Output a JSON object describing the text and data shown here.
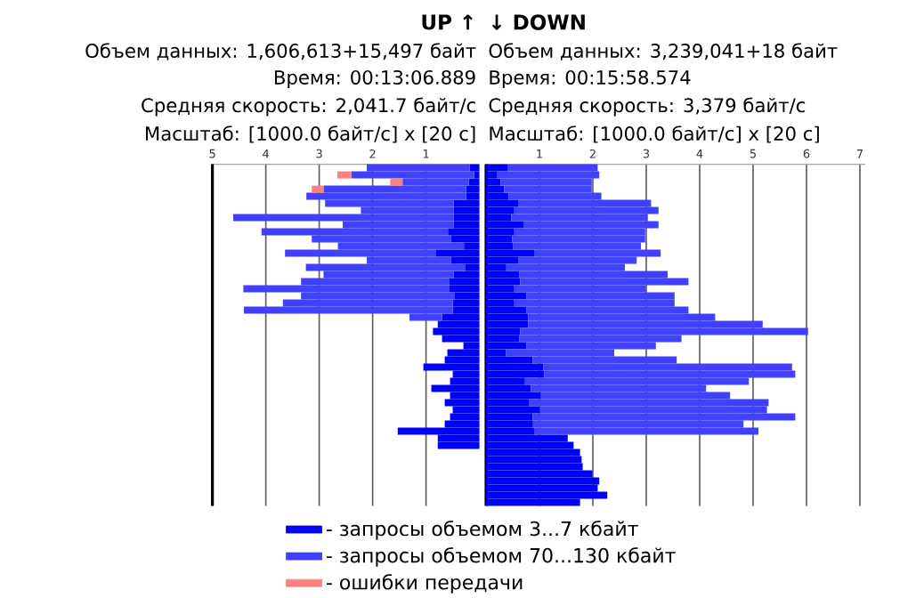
{
  "chart_data": [
    {
      "type": "bar",
      "orientation": "horizontal",
      "stacked": true,
      "title": "UP ↑",
      "annotations": [
        "Объем данных: 1,606,613+15,497 байт",
        "Время: 00:13:06.889",
        "Средняя скорость: 2,041.7 байт/с",
        "Масштаб: [1000.0 байт/с] x [20 с]"
      ],
      "categories": [
        null,
        null,
        null,
        null,
        null,
        null,
        null,
        null,
        null,
        null,
        null,
        null,
        null,
        null,
        null,
        null,
        null,
        null,
        null,
        null,
        null,
        null,
        null,
        null,
        null,
        null,
        null,
        null,
        null,
        null,
        null,
        null,
        null,
        null,
        null,
        null,
        null,
        null,
        null,
        null,
        null,
        null,
        null,
        null,
        null,
        null,
        null,
        null
      ],
      "xlim": [
        5,
        0
      ],
      "xticks": [
        5,
        4,
        3,
        2,
        1
      ],
      "grid": "x",
      "legend": "bottom",
      "series": [
        {
          "name": "- запросы объемом 3...7 кбайт",
          "color": "#0000ff",
          "values": [
            0.18,
            0.1,
            0.2,
            0.25,
            0.25,
            0.48,
            0.48,
            0.48,
            0.48,
            0.59,
            0.53,
            0.29,
            0.81,
            0.53,
            0.26,
            0.48,
            0.56,
            0.56,
            0.46,
            0.5,
            0.5,
            0.7,
            0.78,
            0.87,
            0.7,
            0.3,
            0.6,
            0.65,
            1.05,
            0.5,
            0.55,
            0.9,
            0.55,
            0.65,
            0.5,
            0.55,
            0.65,
            1.53,
            0.78,
            0.78,
            null,
            null,
            null,
            null,
            null,
            null,
            null,
            null
          ]
        },
        {
          "name": "- запросы объемом 70...130 кбайт",
          "color": "#4040ff",
          "values": [
            1.93,
            2.3,
            1.24,
            2.67,
            2.99,
            2.41,
            1.74,
            4.13,
            2.08,
            3.49,
            2.61,
            2.36,
            2.83,
            1.58,
            2.99,
            2.44,
            2.78,
            3.86,
            2.88,
            3.18,
            3.91,
            0.61,
            null,
            null,
            null,
            null,
            null,
            null,
            null,
            null,
            null,
            null,
            null,
            null,
            null,
            null,
            null,
            null,
            null,
            null,
            null,
            null,
            null,
            null,
            null,
            null,
            null,
            null
          ]
        },
        {
          "name": "- ошибки передачи",
          "color": "#ff8080",
          "values": [
            null,
            0.26,
            0.23,
            0.22,
            null,
            null,
            null,
            null,
            null,
            null,
            null,
            null,
            null,
            null,
            null,
            null,
            null,
            null,
            null,
            null,
            null,
            null,
            null,
            null,
            null,
            null,
            null,
            null,
            null,
            null,
            null,
            null,
            null,
            null,
            null,
            null,
            null,
            null,
            null,
            null,
            null,
            null,
            null,
            null,
            null,
            null,
            null,
            null
          ]
        }
      ]
    },
    {
      "type": "bar",
      "orientation": "horizontal",
      "stacked": true,
      "title": "↓ DOWN",
      "annotations": [
        "Объем данных: 3,239,041+18 байт",
        "Время: 00:15:58.574",
        "Средняя скорость: 3,379 байт/с",
        "Масштаб: [1000.0 байт/с] x [20 с]"
      ],
      "categories": [
        null,
        null,
        null,
        null,
        null,
        null,
        null,
        null,
        null,
        null,
        null,
        null,
        null,
        null,
        null,
        null,
        null,
        null,
        null,
        null,
        null,
        null,
        null,
        null,
        null,
        null,
        null,
        null,
        null,
        null,
        null,
        null,
        null,
        null,
        null,
        null,
        null,
        null,
        null,
        null,
        null,
        null,
        null,
        null,
        null,
        null,
        null,
        null
      ],
      "xlim": [
        0,
        7.1
      ],
      "xticks": [
        1,
        2,
        3,
        4,
        5,
        6,
        7
      ],
      "grid": "x",
      "series": [
        {
          "color": "#0000ff",
          "values": [
            0.4,
            0.2,
            0.27,
            0.34,
            0.42,
            0.6,
            0.53,
            0.47,
            0.7,
            0.53,
            0.49,
            0.51,
            0.9,
            0.6,
            0.38,
            0.62,
            0.64,
            0.53,
            0.76,
            0.53,
            0.76,
            0.79,
            0.79,
            0.64,
            0.62,
            0.76,
            0.37,
            0.87,
            1.07,
            1.09,
            0.73,
            0.84,
            1.03,
            0.8,
            1.01,
            0.87,
            0.88,
            0.9,
            1.53,
            1.64,
            1.76,
            1.79,
            1.81,
            1.99,
            2.12,
            2.09,
            2.27,
            1.76
          ]
        },
        {
          "color": "#4040ff",
          "values": [
            1.69,
            1.92,
            1.71,
            1.64,
            1.74,
            2.49,
            2.7,
            2.56,
            2.53,
            2.45,
            2.49,
            2.39,
            2.37,
            2.22,
            2.22,
            2.78,
            3.15,
            2.46,
            2.77,
            3.0,
            3.03,
            3.5,
            4.39,
            5.39,
            3.04,
            2.42,
            2.03,
            2.7,
            4.66,
            4.7,
            4.19,
            3.28,
            3.54,
            4.49,
            4.25,
            4.92,
            3.94,
            4.2,
            null,
            null,
            null,
            null,
            null,
            null,
            null,
            null,
            null,
            null
          ]
        }
      ]
    }
  ]
}
